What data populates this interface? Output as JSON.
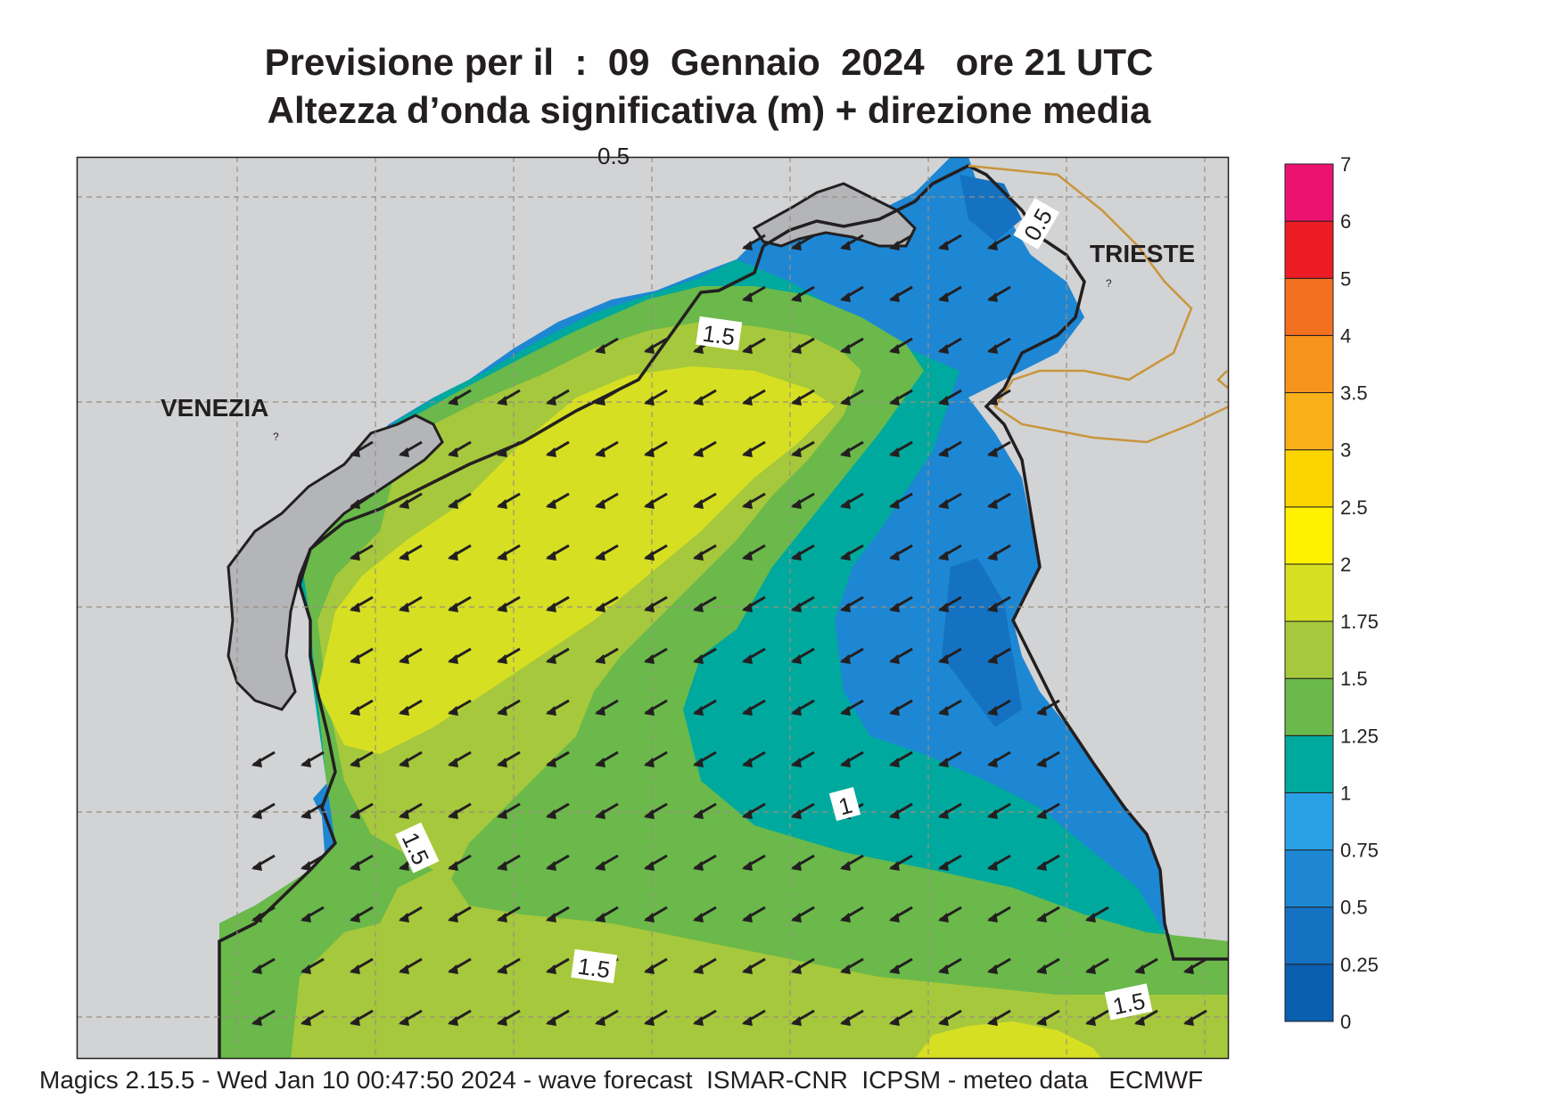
{
  "title": {
    "line1": "Previsione per il  :  09  Gennaio  2024   ore 21 UTC",
    "line2": "Altezza d’onda significativa (m) + direzione media"
  },
  "map": {
    "labels": {
      "venezia": "VENEZIA",
      "trieste": "TRIESTE",
      "top_partial": "0.5",
      "unknown_mark_1": "?",
      "unknown_mark_2": "?"
    },
    "contour_labels": [
      "0.5",
      "1.5",
      "1",
      "1.5",
      "1.5",
      "1.5"
    ],
    "wave_direction": "SW",
    "colors": {
      "land": "#d2d3d5",
      "coast": "#231f20",
      "border": "#c8963c",
      "grid": "#9b8f7f"
    }
  },
  "legend": {
    "ticks": [
      "0",
      "0.25",
      "0.5",
      "0.75",
      "1",
      "1.25",
      "1.5",
      "1.75",
      "2",
      "2.5",
      "3",
      "3.5",
      "4",
      "5",
      "6",
      "7"
    ],
    "colors": [
      "#0a5fae",
      "#1572c2",
      "#1e87d4",
      "#2aa0e5",
      "#00a99d",
      "#6ab94a",
      "#a6c83c",
      "#d7df23",
      "#fff200",
      "#fcd500",
      "#f8b019",
      "#f7941d",
      "#f37021",
      "#ed1c24",
      "#ec1370"
    ]
  },
  "footer": {
    "text": "Magics 2.15.5 - Wed Jan 10 00:47:50 2024 - wave forecast  ISMAR-CNR  ICPSM - meteo data   ECMWF"
  }
}
